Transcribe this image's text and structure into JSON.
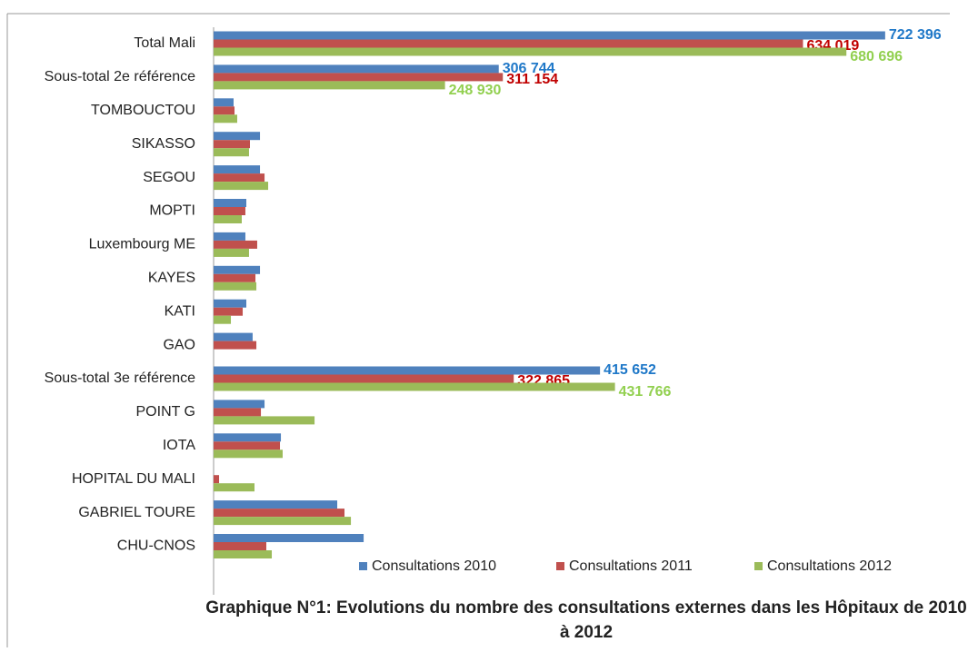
{
  "chart_data": {
    "type": "hbar",
    "title": "Graphique N°1: Evolutions du nombre des consultations externes dans les Hôpitaux de 2010 à 2012",
    "categories": [
      "Total Mali",
      "Sous-total 2e référence",
      "TOMBOUCTOU",
      "SIKASSO",
      "SEGOU",
      "MOPTI",
      "Luxembourg ME",
      "KAYES",
      "KATI",
      "GAO",
      "Sous-total 3e référence",
      "POINT G",
      "IOTA",
      "HOPITAL DU MALI",
      "GABRIEL TOURE",
      "CHU-CNOS"
    ],
    "series": [
      {
        "name": "Consultations 2010",
        "color": "#4f81bd",
        "label_color": "#1f78c8",
        "values": [
          722396,
          306744,
          21500,
          49900,
          49900,
          35200,
          34200,
          49900,
          35200,
          42000,
          415652,
          54800,
          72400,
          null,
          133000,
          161400
        ],
        "value_labels": [
          "722 396",
          "306 744",
          null,
          null,
          null,
          null,
          null,
          null,
          null,
          null,
          "415 652",
          null,
          null,
          null,
          null,
          null
        ]
      },
      {
        "name": "Consultations 2011",
        "color": "#c0504d",
        "label_color": "#c00000",
        "values": [
          634019,
          311154,
          22500,
          39100,
          54800,
          34200,
          46900,
          45000,
          31300,
          46000,
          322865,
          50900,
          71400,
          5900,
          140800,
          56700
        ],
        "value_labels": [
          "634 019",
          "311 154",
          null,
          null,
          null,
          null,
          null,
          null,
          null,
          null,
          "322 865",
          null,
          null,
          null,
          null,
          null
        ]
      },
      {
        "name": "Consultations 2012",
        "color": "#9bbb59",
        "label_color": "#92d050",
        "values": [
          680696,
          248930,
          25400,
          38100,
          58700,
          30300,
          38100,
          46000,
          18600,
          null,
          431766,
          108600,
          74300,
          44000,
          147700,
          62600
        ],
        "value_labels": [
          "680 696",
          "248 930",
          null,
          null,
          null,
          null,
          null,
          null,
          null,
          null,
          "431 766",
          null,
          null,
          null,
          null,
          null
        ]
      }
    ],
    "xlim": [
      0,
      790000
    ],
    "legend": "bottom"
  }
}
